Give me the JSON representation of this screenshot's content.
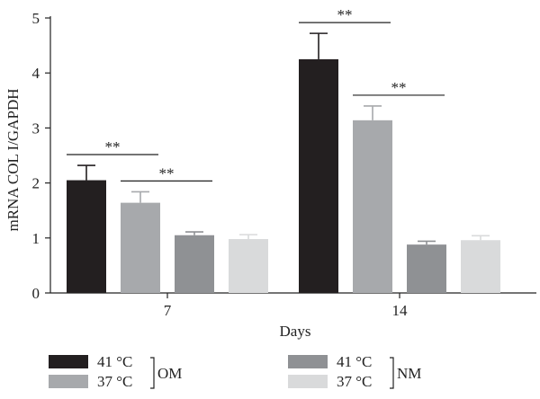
{
  "chart_data": {
    "type": "bar",
    "ylabel": "mRNA COL I/GAPDH",
    "xlabel": "Days",
    "ylim": [
      0,
      5
    ],
    "yticks": [
      0,
      1,
      2,
      3,
      4,
      5
    ],
    "categories": [
      "7",
      "14"
    ],
    "series": [
      {
        "name": "41 °C",
        "color": "#231f20",
        "values": [
          2.05,
          4.25
        ],
        "errors": [
          0.27,
          0.47
        ]
      },
      {
        "name": "37 °C",
        "color": "#a7a9ac",
        "values": [
          1.64,
          3.14
        ],
        "errors": [
          0.2,
          0.26
        ]
      },
      {
        "name": "41 °C",
        "color": "#8f9194",
        "values": [
          1.05,
          0.88
        ],
        "errors": [
          0.06,
          0.06
        ]
      },
      {
        "name": "37 °C",
        "color": "#d9dadb",
        "values": [
          0.98,
          0.96
        ],
        "errors": [
          0.08,
          0.08
        ]
      }
    ],
    "significance": [
      {
        "category": 0,
        "from": 0,
        "to": 1,
        "label": "**"
      },
      {
        "category": 0,
        "from": 1,
        "to": 2,
        "label": "**"
      },
      {
        "category": 1,
        "from": 0,
        "to": 1,
        "label": "**"
      },
      {
        "category": 1,
        "from": 1,
        "to": 2,
        "label": "**"
      }
    ],
    "legend": {
      "position": "bottom",
      "groups": [
        {
          "label": "OM",
          "series": [
            0,
            1
          ]
        },
        {
          "label": "NM",
          "series": [
            2,
            3
          ]
        }
      ]
    }
  }
}
